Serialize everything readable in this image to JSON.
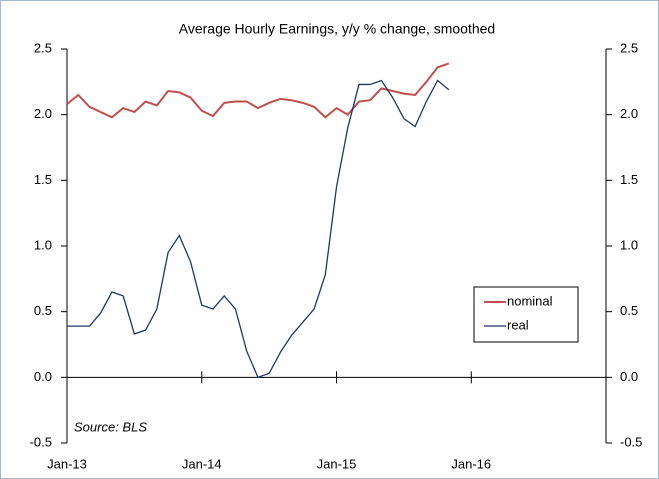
{
  "chart_data": {
    "type": "line",
    "title": "Average Hourly Earnings, y/y % change, smoothed",
    "annotation": "Source: BLS",
    "categories": [
      "Jan-13",
      null,
      null,
      null,
      null,
      null,
      null,
      null,
      null,
      null,
      null,
      null,
      "Jan-14",
      null,
      null,
      null,
      null,
      null,
      null,
      null,
      null,
      null,
      null,
      null,
      "Jan-15",
      null,
      null,
      null,
      null,
      null,
      null,
      null,
      null,
      null,
      null,
      null,
      "Jan-16"
    ],
    "series": [
      {
        "name": "nominal",
        "color": "#c0504d",
        "width": 2,
        "values": [
          2.08,
          2.15,
          2.06,
          2.02,
          1.98,
          2.05,
          2.02,
          2.1,
          2.07,
          2.18,
          2.17,
          2.13,
          2.03,
          1.99,
          2.09,
          2.1,
          2.1,
          2.05,
          2.09,
          2.12,
          2.11,
          2.09,
          2.06,
          1.98,
          2.05,
          2.0,
          2.1,
          2.11,
          2.2,
          2.18,
          2.16,
          2.15,
          2.25,
          2.36,
          2.39,
          null,
          null
        ]
      },
      {
        "name": "real",
        "color": "#1f3864",
        "width": 1.3,
        "values": [
          0.39,
          0.39,
          0.39,
          0.49,
          0.65,
          0.62,
          0.33,
          0.36,
          0.52,
          0.95,
          1.08,
          0.88,
          0.55,
          0.52,
          0.62,
          0.52,
          0.2,
          0.0,
          0.03,
          0.19,
          0.32,
          0.42,
          0.52,
          0.78,
          1.45,
          1.9,
          2.23,
          2.23,
          2.26,
          2.13,
          1.97,
          1.91,
          2.1,
          2.26,
          2.19,
          null,
          null
        ]
      }
    ],
    "ylim": [
      -0.5,
      2.5
    ],
    "yticks": [
      -0.5,
      {
        "value": 0,
        "label": "0.0"
      },
      0.5,
      {
        "value": 1,
        "label": "1.0"
      },
      1.5,
      {
        "value": 2,
        "label": "2.0"
      },
      2.5
    ],
    "y2lim": [
      -0.5,
      2.5
    ],
    "y2ticks": [
      -0.5,
      {
        "value": 0,
        "label": "0.0"
      },
      0.5,
      {
        "value": 1,
        "label": "1.0"
      },
      1.5,
      {
        "value": 2,
        "label": "2.0"
      },
      2.5
    ],
    "grid": false,
    "legend": "lower right"
  }
}
